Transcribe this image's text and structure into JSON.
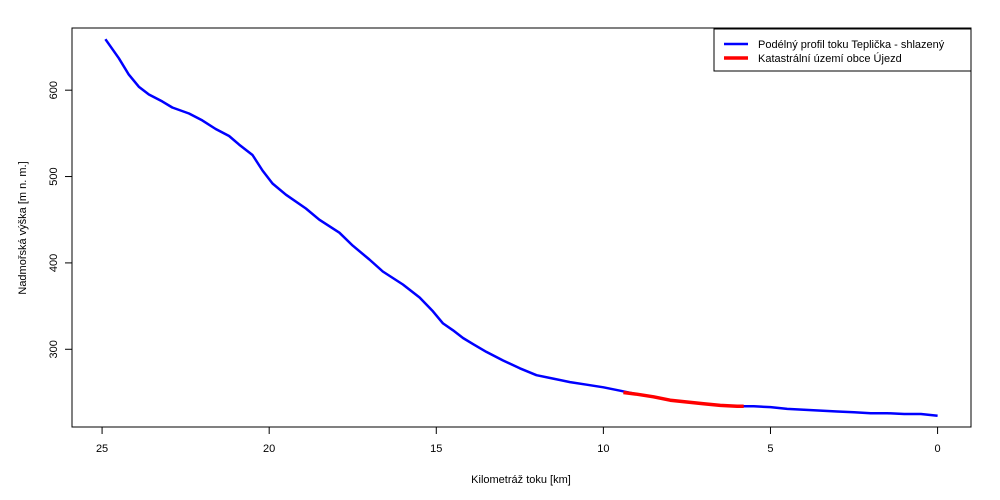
{
  "chart_data": {
    "type": "line",
    "title": "",
    "xlabel": "Kilometráž toku [km]",
    "ylabel": "Nadmořská výška [m n. m.]",
    "xlim": [
      25.9,
      -1.0
    ],
    "ylim": [
      210,
      672
    ],
    "x_reversed": true,
    "x_ticks": [
      25,
      20,
      15,
      10,
      5,
      0
    ],
    "y_ticks": [
      300,
      400,
      500,
      600
    ],
    "grid": false,
    "legend_position": "top-right",
    "series": [
      {
        "name": "Podélný profil toku Teplička - shlazený",
        "color": "#0000ff",
        "x": [
          24.9,
          24.5,
          24.2,
          23.9,
          23.6,
          23.2,
          22.9,
          22.4,
          22.0,
          21.6,
          21.2,
          20.9,
          20.5,
          20.2,
          19.9,
          19.5,
          18.9,
          18.5,
          17.9,
          17.5,
          17.0,
          16.6,
          16.0,
          15.5,
          15.1,
          14.8,
          14.5,
          14.2,
          13.9,
          13.5,
          13.0,
          12.5,
          12.0,
          11.5,
          11.0,
          10.5,
          10.0,
          9.5,
          9.0,
          8.5,
          8.0,
          7.5,
          7.0,
          6.5,
          6.0,
          5.5,
          5.0,
          4.5,
          4.0,
          3.5,
          3.0,
          2.5,
          2.0,
          1.5,
          1.0,
          0.5,
          0.0
        ],
        "y": [
          659,
          637,
          618,
          604,
          595,
          587,
          580,
          573,
          565,
          555,
          547,
          537,
          525,
          507,
          492,
          479,
          463,
          450,
          435,
          420,
          404,
          390,
          375,
          360,
          344,
          330,
          322,
          313,
          306,
          297,
          287,
          278,
          270,
          266,
          262,
          259,
          256,
          252,
          248,
          245,
          241,
          239,
          237,
          235,
          234,
          234,
          233,
          231,
          230,
          229,
          228,
          227,
          226,
          226,
          225,
          225,
          223
        ]
      },
      {
        "name": "Katastrální území obce Újezd",
        "color": "#ff0000",
        "x": [
          9.4,
          9.0,
          8.5,
          8.0,
          7.5,
          7.0,
          6.5,
          6.0,
          5.8
        ],
        "y": [
          250,
          248,
          245,
          241,
          239,
          237,
          235,
          234,
          234
        ]
      }
    ]
  }
}
